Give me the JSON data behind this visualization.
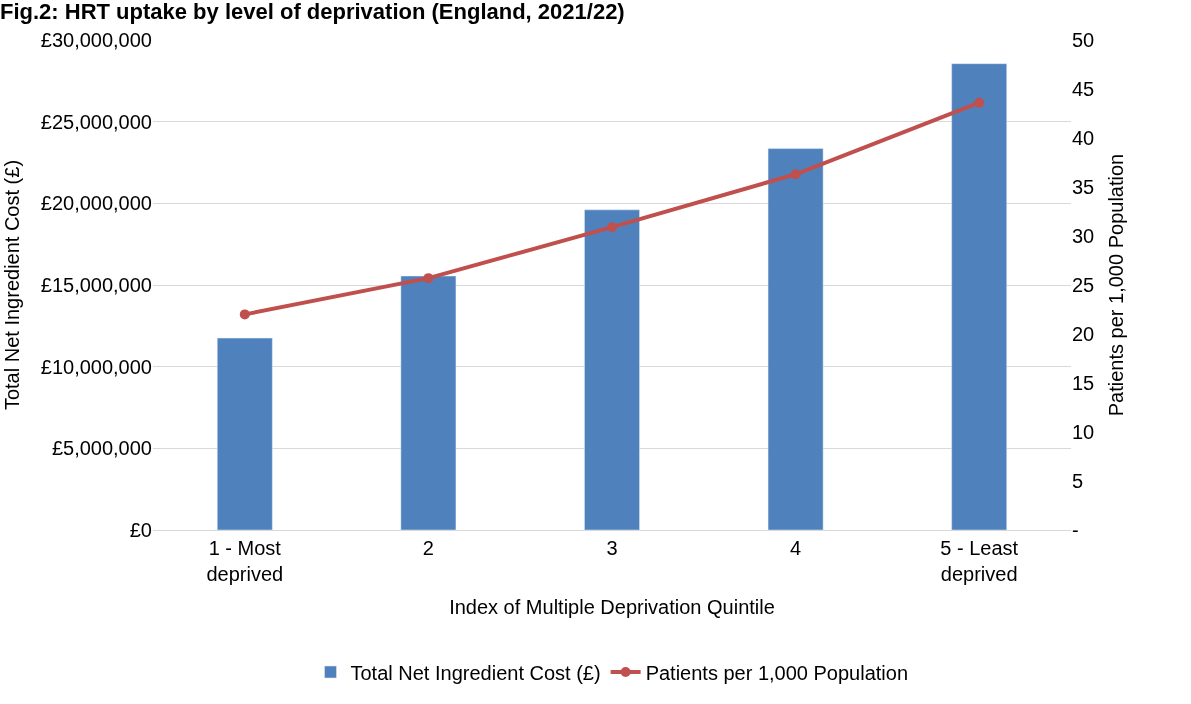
{
  "chart_data": {
    "type": "bar",
    "title": "Fig.2: HRT uptake by level of deprivation (England, 2021/22)",
    "xlabel": "Index of Multiple Deprivation Quintile",
    "ylabel": "Total Net Ingredient Cost (£)",
    "y2label": "Patients per 1,000 Population",
    "categories": [
      "1 - Most deprived",
      "2",
      "3",
      "4",
      "5 - Least deprived"
    ],
    "series": [
      {
        "name": "Total Net Ingredient Cost (£)",
        "color": "#4f81bd",
        "values": [
          11750000,
          15550000,
          19600000,
          23350000,
          28550000
        ]
      },
      {
        "name": "Patients per 1,000 Population",
        "type": "line",
        "axis": "y2",
        "color": "#c0504d",
        "marker": "circle",
        "values": [
          22.0,
          25.7,
          30.9,
          36.3,
          43.6
        ]
      }
    ],
    "ylim": [
      0,
      30000000
    ],
    "yticks": [
      {
        "value": 0,
        "label": "£0"
      },
      {
        "value": 5000000,
        "label": "£5,000,000"
      },
      {
        "value": 10000000,
        "label": "£10,000,000"
      },
      {
        "value": 15000000,
        "label": "£15,000,000"
      },
      {
        "value": 20000000,
        "label": "£20,000,000"
      },
      {
        "value": 25000000,
        "label": "£25,000,000"
      },
      {
        "value": 30000000,
        "label": "£30,000,000"
      }
    ],
    "y2lim": [
      0,
      50
    ],
    "y2ticks": [
      {
        "value": 0,
        "label": "-"
      },
      5,
      10,
      15,
      20,
      25,
      30,
      35,
      40,
      45,
      50
    ],
    "grid": "y",
    "legend": "bottom"
  }
}
